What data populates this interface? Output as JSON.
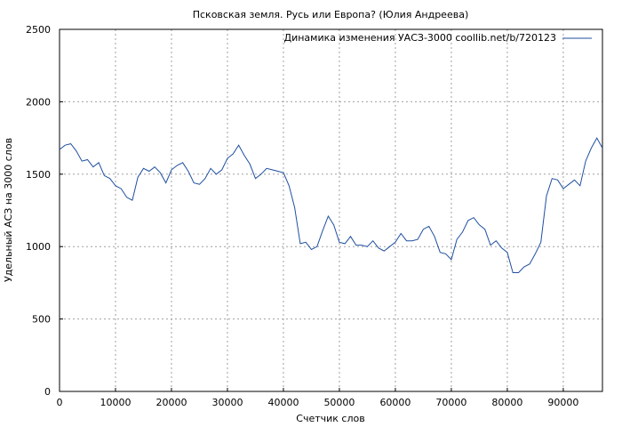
{
  "chart_data": {
    "type": "line",
    "title": "Псковская земля. Русь или Европа? (Юлия Андреева)",
    "xlabel": "Счетчик слов",
    "ylabel": "Удельный АСЗ на 3000 слов",
    "xlim": [
      0,
      97000
    ],
    "ylim": [
      0,
      2500
    ],
    "xticks": [
      0,
      10000,
      20000,
      30000,
      40000,
      50000,
      60000,
      70000,
      80000,
      90000
    ],
    "yticks": [
      0,
      500,
      1000,
      1500,
      2000,
      2500
    ],
    "grid": true,
    "legend_position": "top-right",
    "series": [
      {
        "name": "Динамика изменения УАСЗ-3000 coollib.net/b/720123",
        "color": "#1f4fa0",
        "x": [
          0,
          1000,
          2000,
          3000,
          4000,
          5000,
          6000,
          7000,
          8000,
          9000,
          10000,
          11000,
          12000,
          13000,
          14000,
          15000,
          16000,
          17000,
          18000,
          19000,
          20000,
          21000,
          22000,
          23000,
          24000,
          25000,
          26000,
          27000,
          28000,
          29000,
          30000,
          31000,
          32000,
          33000,
          34000,
          35000,
          36000,
          37000,
          38000,
          39000,
          40000,
          41000,
          42000,
          43000,
          44000,
          45000,
          46000,
          47000,
          48000,
          49000,
          50000,
          51000,
          52000,
          53000,
          54000,
          55000,
          56000,
          57000,
          58000,
          59000,
          60000,
          61000,
          62000,
          63000,
          64000,
          65000,
          66000,
          67000,
          68000,
          69000,
          70000,
          71000,
          72000,
          73000,
          74000,
          75000,
          76000,
          77000,
          78000,
          79000,
          80000,
          81000,
          82000,
          83000,
          84000,
          85000,
          86000,
          87000,
          88000,
          89000,
          90000,
          91000,
          92000,
          93000,
          94000,
          95000,
          96000,
          97000
        ],
        "y": [
          1670,
          1700,
          1710,
          1660,
          1590,
          1600,
          1550,
          1580,
          1490,
          1470,
          1420,
          1400,
          1340,
          1320,
          1480,
          1540,
          1520,
          1550,
          1510,
          1440,
          1530,
          1560,
          1580,
          1520,
          1440,
          1430,
          1470,
          1540,
          1500,
          1530,
          1610,
          1640,
          1700,
          1630,
          1570,
          1470,
          1500,
          1540,
          1530,
          1520,
          1510,
          1420,
          1270,
          1020,
          1030,
          980,
          1000,
          1110,
          1210,
          1150,
          1030,
          1020,
          1070,
          1010,
          1010,
          1000,
          1040,
          990,
          970,
          1000,
          1030,
          1090,
          1040,
          1040,
          1050,
          1120,
          1140,
          1070,
          960,
          950,
          910,
          1050,
          1100,
          1180,
          1200,
          1150,
          1120,
          1010,
          1040,
          990,
          960,
          820,
          820,
          860,
          880,
          950,
          1030,
          1350,
          1470,
          1460,
          1400,
          1430,
          1460,
          1420,
          1590,
          1680,
          1750,
          1680
        ]
      }
    ]
  }
}
